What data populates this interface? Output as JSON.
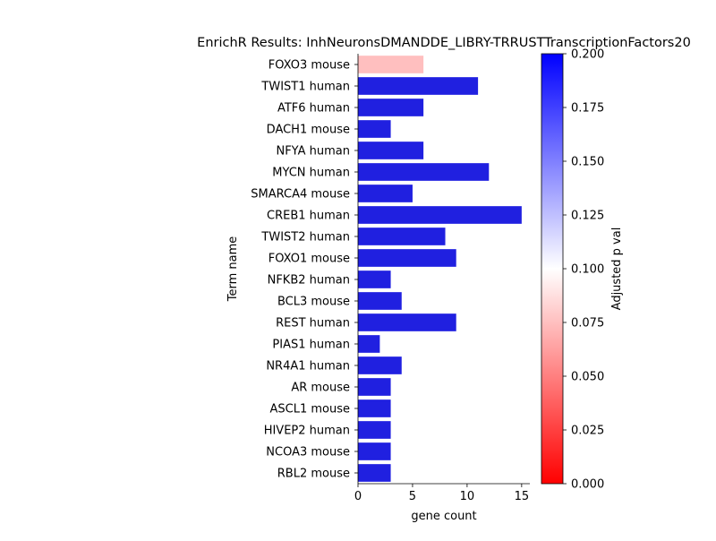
{
  "chart_data": {
    "type": "bar",
    "orientation": "horizontal",
    "title": "EnrichR Results: InhNeuronsDMANDDE_LIBRY-TRRUSTTranscriptionFactors20",
    "xlabel": "gene count",
    "ylabel": "Term name",
    "xlim": [
      0,
      15.75
    ],
    "xticks": [
      0,
      5,
      10,
      15
    ],
    "grid": false,
    "categories": [
      "FOXO3 mouse",
      "TWIST1 human",
      "ATF6 human",
      "DACH1 mouse",
      "NFYA human",
      "MYCN human",
      "SMARCA4 mouse",
      "CREB1 human",
      "TWIST2 human",
      "FOXO1 mouse",
      "NFKB2 human",
      "BCL3 mouse",
      "REST human",
      "PIAS1 human",
      "NR4A1 human",
      "AR mouse",
      "ASCL1 mouse",
      "HIVEP2 human",
      "NCOA3 mouse",
      "RBL2 mouse"
    ],
    "values": [
      6,
      11,
      6,
      3,
      6,
      12,
      5,
      15,
      8,
      9,
      3,
      4,
      9,
      2,
      4,
      3,
      3,
      3,
      3,
      3
    ],
    "adjusted_p_val": [
      0.075,
      0.2,
      0.2,
      0.2,
      0.2,
      0.2,
      0.2,
      0.2,
      0.2,
      0.2,
      0.2,
      0.2,
      0.2,
      0.2,
      0.2,
      0.2,
      0.2,
      0.2,
      0.2,
      0.2
    ],
    "colorbar": {
      "label": "Adjusted p val",
      "range": [
        0,
        0.2
      ],
      "ticks": [
        "0.000",
        "0.025",
        "0.050",
        "0.075",
        "0.100",
        "0.125",
        "0.150",
        "0.175",
        "0.200"
      ],
      "colormap": [
        "#ff0000",
        "#ffffff",
        "#0000ff"
      ]
    },
    "colors": {
      "high_p": "#2020e0",
      "low_p": "#f59a9a"
    }
  }
}
